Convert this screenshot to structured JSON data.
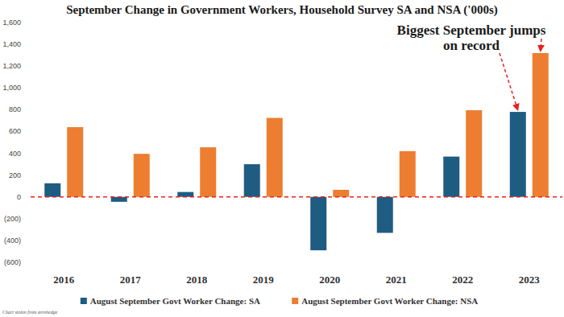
{
  "chart_data": {
    "type": "bar",
    "title": "September Change in Government Workers, Household Survey SA and NSA ('000s)",
    "annotation": "Biggest September jumps on record",
    "source": "Chart stolen from zerohedge",
    "categories": [
      "2016",
      "2017",
      "2018",
      "2019",
      "2020",
      "2021",
      "2022",
      "2023"
    ],
    "series": [
      {
        "name": "August September Govt Worker Change: SA",
        "color": "#1f5c82",
        "values": [
          125,
          -45,
          45,
          300,
          -490,
          -330,
          370,
          780
        ]
      },
      {
        "name": "August September Govt Worker Change: NSA",
        "color": "#ed7d31",
        "values": [
          640,
          395,
          455,
          725,
          65,
          420,
          795,
          1320
        ]
      }
    ],
    "ylim": [
      -600,
      1600
    ],
    "yticks": [
      {
        "value": -600,
        "label": "(600)"
      },
      {
        "value": -400,
        "label": "(400)"
      },
      {
        "value": -200,
        "label": "(200)"
      },
      0,
      200,
      400,
      600,
      800,
      {
        "value": 1000,
        "label": "1,000"
      },
      {
        "value": 1200,
        "label": "1,200"
      },
      {
        "value": 1400,
        "label": "1,400"
      },
      {
        "value": 1600,
        "label": "1,600"
      }
    ],
    "grid": false,
    "legend": "bottom",
    "data_labels": false
  }
}
